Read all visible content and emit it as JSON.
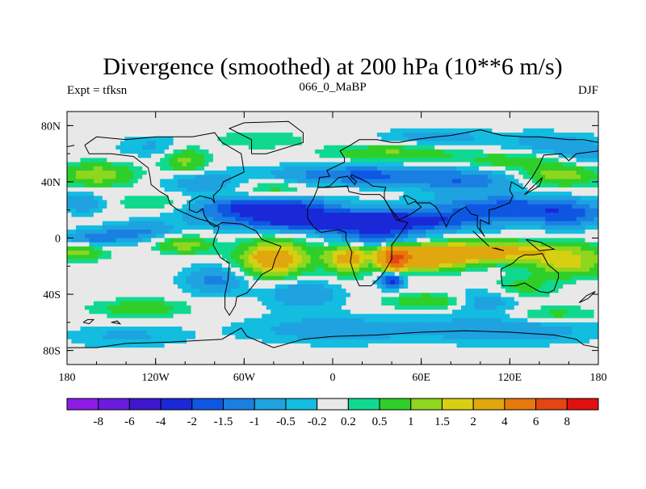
{
  "chart_data": {
    "type": "heatmap",
    "title": "Divergence (smoothed) at 200 hPa (10**6 m/s)",
    "subtitle": "066_0_MaBP",
    "left_label": "Expt = tfksn",
    "right_label": "DJF",
    "x_ticks": [
      {
        "value": -180,
        "label": "180"
      },
      {
        "value": -120,
        "label": "120W"
      },
      {
        "value": -60,
        "label": "60W"
      },
      {
        "value": 0,
        "label": "0"
      },
      {
        "value": 60,
        "label": "60E"
      },
      {
        "value": 120,
        "label": "120E"
      },
      {
        "value": 180,
        "label": "180"
      }
    ],
    "y_ticks": [
      {
        "value": 80,
        "label": "80N"
      },
      {
        "value": 40,
        "label": "40N"
      },
      {
        "value": 0,
        "label": "0"
      },
      {
        "value": -40,
        "label": "40S"
      },
      {
        "value": -80,
        "label": "80S"
      }
    ],
    "xlim": [
      -180,
      180
    ],
    "ylim": [
      -90,
      90
    ],
    "legend_levels": [
      "-8",
      "-6",
      "-4",
      "-2",
      "-1.5",
      "-1",
      "-0.5",
      "-0.2",
      "0.2",
      "0.5",
      "1",
      "1.5",
      "2",
      "4",
      "6",
      "8"
    ],
    "legend_colors": [
      "#8c1ce6",
      "#6a1bdc",
      "#3f17cf",
      "#1a28d8",
      "#0e57e2",
      "#1a7fe3",
      "#1ea2e0",
      "#12bde0",
      "#e8e8e8",
      "#10d98f",
      "#2fcf2a",
      "#8fd61e",
      "#d8cf12",
      "#e0a80e",
      "#e6780c",
      "#e44512",
      "#e01010"
    ],
    "field_blobs": [
      {
        "lon": 15,
        "lat": 12,
        "rx": 80,
        "ry": 7,
        "v": -3.2
      },
      {
        "lon": -45,
        "lat": 22,
        "rx": 45,
        "ry": 7,
        "v": -2.5
      },
      {
        "lon": 120,
        "lat": 22,
        "rx": 55,
        "ry": 8,
        "v": -1.8
      },
      {
        "lon": 20,
        "lat": 45,
        "rx": 60,
        "ry": 7,
        "v": -1.6
      },
      {
        "lon": -160,
        "lat": 0,
        "rx": 25,
        "ry": 6,
        "v": -1.2
      },
      {
        "lon": -130,
        "lat": 5,
        "rx": 22,
        "ry": 6,
        "v": -1.0
      },
      {
        "lon": 160,
        "lat": 15,
        "rx": 25,
        "ry": 8,
        "v": -1.2
      },
      {
        "lon": -170,
        "lat": 25,
        "rx": 15,
        "ry": 7,
        "v": -1.0
      },
      {
        "lon": 90,
        "lat": 40,
        "rx": 35,
        "ry": 8,
        "v": -1.2
      },
      {
        "lon": -90,
        "lat": 40,
        "rx": 25,
        "ry": 8,
        "v": -0.9
      },
      {
        "lon": 170,
        "lat": 60,
        "rx": 25,
        "ry": 10,
        "v": -0.7
      },
      {
        "lon": -120,
        "lat": 65,
        "rx": 25,
        "ry": 8,
        "v": -0.6
      },
      {
        "lon": 140,
        "lat": 68,
        "rx": 30,
        "ry": 8,
        "v": -0.6
      },
      {
        "lon": -50,
        "lat": 70,
        "rx": 30,
        "ry": 6,
        "v": 0.5
      },
      {
        "lon": 70,
        "lat": 72,
        "rx": 35,
        "ry": 6,
        "v": -0.8
      },
      {
        "lon": -160,
        "lat": 45,
        "rx": 25,
        "ry": 8,
        "v": 1.4
      },
      {
        "lon": 155,
        "lat": 45,
        "rx": 25,
        "ry": 8,
        "v": 1.4
      },
      {
        "lon": -100,
        "lat": 55,
        "rx": 15,
        "ry": 10,
        "v": 1.2
      },
      {
        "lon": 40,
        "lat": 60,
        "rx": 40,
        "ry": 6,
        "v": 1.1
      },
      {
        "lon": 120,
        "lat": 55,
        "rx": 35,
        "ry": 6,
        "v": 0.8
      },
      {
        "lon": -40,
        "lat": 35,
        "rx": 20,
        "ry": 6,
        "v": 0.7
      },
      {
        "lon": -120,
        "lat": 25,
        "rx": 25,
        "ry": 6,
        "v": 0.6
      },
      {
        "lon": 100,
        "lat": -10,
        "rx": 70,
        "ry": 7,
        "v": 2.6
      },
      {
        "lon": 65,
        "lat": -15,
        "rx": 25,
        "ry": 8,
        "v": 2.4
      },
      {
        "lon": 42,
        "lat": -15,
        "rx": 9,
        "ry": 8,
        "v": 5.0
      },
      {
        "lon": -40,
        "lat": -15,
        "rx": 22,
        "ry": 12,
        "v": 2.8
      },
      {
        "lon": 10,
        "lat": -15,
        "rx": 15,
        "ry": 10,
        "v": 2.1
      },
      {
        "lon": -175,
        "lat": -10,
        "rx": 20,
        "ry": 6,
        "v": 1.3
      },
      {
        "lon": -100,
        "lat": -5,
        "rx": 18,
        "ry": 6,
        "v": 1.3
      },
      {
        "lon": 160,
        "lat": -20,
        "rx": 25,
        "ry": 8,
        "v": 1.5
      },
      {
        "lon": 70,
        "lat": -45,
        "rx": 30,
        "ry": 6,
        "v": 1.1
      },
      {
        "lon": -130,
        "lat": -50,
        "rx": 30,
        "ry": 6,
        "v": 0.9
      },
      {
        "lon": 150,
        "lat": -55,
        "rx": 30,
        "ry": 6,
        "v": 0.8
      },
      {
        "lon": 130,
        "lat": -35,
        "rx": 20,
        "ry": 8,
        "v": 0.7
      },
      {
        "lon": 40,
        "lat": -30,
        "rx": 8,
        "ry": 6,
        "v": -2.4
      },
      {
        "lon": -20,
        "lat": -40,
        "rx": 25,
        "ry": 10,
        "v": -1.0
      },
      {
        "lon": 100,
        "lat": -45,
        "rx": 25,
        "ry": 8,
        "v": -1.0
      },
      {
        "lon": -80,
        "lat": -30,
        "rx": 20,
        "ry": 10,
        "v": -1.2
      },
      {
        "lon": 0,
        "lat": -65,
        "rx": 60,
        "ry": 10,
        "v": -0.8
      },
      {
        "lon": 120,
        "lat": -65,
        "rx": 60,
        "ry": 10,
        "v": -0.9
      },
      {
        "lon": -140,
        "lat": -70,
        "rx": 40,
        "ry": 8,
        "v": -0.6
      },
      {
        "lon": 30,
        "lat": 0,
        "rx": 30,
        "ry": 8,
        "v": -1.6
      }
    ],
    "coastlines": [
      [
        [
          -168,
          66
        ],
        [
          -160,
          72
        ],
        [
          -140,
          70
        ],
        [
          -120,
          72
        ],
        [
          -95,
          72
        ],
        [
          -80,
          75
        ],
        [
          -75,
          68
        ],
        [
          -62,
          60
        ],
        [
          -60,
          47
        ],
        [
          -66,
          44
        ],
        [
          -74,
          40
        ],
        [
          -76,
          35
        ],
        [
          -81,
          30
        ],
        [
          -80,
          25
        ],
        [
          -82,
          28
        ],
        [
          -90,
          30
        ],
        [
          -97,
          26
        ],
        [
          -97,
          20
        ],
        [
          -92,
          18
        ],
        [
          -88,
          21
        ],
        [
          -87,
          16
        ],
        [
          -83,
          10
        ],
        [
          -80,
          8
        ],
        [
          -78,
          9
        ],
        [
          -75,
          11
        ],
        [
          -62,
          10
        ],
        [
          -52,
          5
        ],
        [
          -48,
          -1
        ],
        [
          -35,
          -6
        ],
        [
          -39,
          -15
        ],
        [
          -41,
          -22
        ],
        [
          -48,
          -26
        ],
        [
          -54,
          -34
        ],
        [
          -58,
          -39
        ],
        [
          -65,
          -42
        ],
        [
          -66,
          -48
        ],
        [
          -70,
          -55
        ],
        [
          -73,
          -50
        ],
        [
          -73,
          -40
        ],
        [
          -71,
          -30
        ],
        [
          -70,
          -18
        ],
        [
          -76,
          -14
        ],
        [
          -81,
          -5
        ],
        [
          -80,
          0
        ],
        [
          -78,
          4
        ],
        [
          -77,
          8
        ],
        [
          -85,
          12
        ],
        [
          -92,
          14
        ],
        [
          -105,
          20
        ],
        [
          -110,
          24
        ],
        [
          -112,
          30
        ],
        [
          -117,
          33
        ],
        [
          -123,
          38
        ],
        [
          -124,
          45
        ],
        [
          -125,
          50
        ],
        [
          -135,
          58
        ],
        [
          -150,
          60
        ],
        [
          -165,
          60
        ],
        [
          -168,
          66
        ]
      ],
      [
        [
          -10,
          36
        ],
        [
          -6,
          36
        ],
        [
          -2,
          36
        ],
        [
          10,
          37
        ],
        [
          11,
          33
        ],
        [
          20,
          31
        ],
        [
          32,
          31
        ],
        [
          35,
          28
        ],
        [
          43,
          13
        ],
        [
          51,
          11
        ],
        [
          45,
          2
        ],
        [
          40,
          -5
        ],
        [
          40,
          -15
        ],
        [
          35,
          -24
        ],
        [
          32,
          -28
        ],
        [
          26,
          -34
        ],
        [
          18,
          -34
        ],
        [
          15,
          -27
        ],
        [
          12,
          -17
        ],
        [
          13,
          -10
        ],
        [
          9,
          -1
        ],
        [
          9,
          4
        ],
        [
          4,
          6
        ],
        [
          -8,
          4
        ],
        [
          -13,
          8
        ],
        [
          -17,
          14
        ],
        [
          -17,
          21
        ],
        [
          -13,
          28
        ],
        [
          -10,
          36
        ]
      ],
      [
        [
          -10,
          36
        ],
        [
          -9,
          43
        ],
        [
          -2,
          44
        ],
        [
          -4,
          48
        ],
        [
          2,
          51
        ],
        [
          8,
          54
        ],
        [
          8,
          57
        ],
        [
          5,
          62
        ],
        [
          12,
          66
        ],
        [
          18,
          70
        ],
        [
          30,
          70
        ],
        [
          40,
          68
        ],
        [
          45,
          68
        ],
        [
          55,
          70
        ],
        [
          70,
          72
        ],
        [
          80,
          73
        ],
        [
          100,
          77
        ],
        [
          115,
          73
        ],
        [
          130,
          72
        ],
        [
          140,
          72
        ],
        [
          160,
          70
        ],
        [
          170,
          70
        ],
        [
          180,
          68
        ]
      ],
      [
        [
          -180,
          65
        ],
        [
          -175,
          66
        ]
      ],
      [
        [
          180,
          62
        ],
        [
          165,
          60
        ],
        [
          160,
          55
        ],
        [
          155,
          60
        ],
        [
          143,
          59
        ],
        [
          140,
          52
        ],
        [
          135,
          43
        ],
        [
          129,
          35
        ],
        [
          126,
          37
        ],
        [
          121,
          40
        ],
        [
          120,
          34
        ],
        [
          122,
          30
        ],
        [
          120,
          25
        ],
        [
          110,
          21
        ],
        [
          106,
          20
        ],
        [
          106,
          10
        ],
        [
          100,
          13
        ],
        [
          100,
          6
        ],
        [
          103,
          1
        ],
        [
          98,
          8
        ],
        [
          98,
          16
        ],
        [
          94,
          17
        ],
        [
          90,
          22
        ],
        [
          86,
          20
        ],
        [
          80,
          15
        ],
        [
          77,
          8
        ],
        [
          73,
          17
        ],
        [
          70,
          22
        ],
        [
          66,
          25
        ],
        [
          57,
          25
        ],
        [
          56,
          27
        ],
        [
          50,
          30
        ],
        [
          48,
          30
        ],
        [
          51,
          24
        ],
        [
          56,
          26
        ],
        [
          60,
          22
        ],
        [
          53,
          17
        ],
        [
          45,
          13
        ],
        [
          43,
          16
        ],
        [
          39,
          21
        ],
        [
          35,
          28
        ],
        [
          35,
          33
        ],
        [
          36,
          36
        ],
        [
          27,
          37
        ],
        [
          23,
          40
        ],
        [
          19,
          42
        ],
        [
          13,
          45
        ],
        [
          12,
          44
        ],
        [
          16,
          40
        ],
        [
          15,
          38
        ],
        [
          10,
          44
        ],
        [
          4,
          43
        ],
        [
          -2,
          37
        ],
        [
          -6,
          36
        ],
        [
          -10,
          36
        ]
      ],
      [
        [
          114,
          -22
        ],
        [
          114,
          -26
        ],
        [
          115,
          -34
        ],
        [
          124,
          -34
        ],
        [
          130,
          -32
        ],
        [
          135,
          -35
        ],
        [
          140,
          -38
        ],
        [
          146,
          -39
        ],
        [
          150,
          -37
        ],
        [
          153,
          -28
        ],
        [
          153,
          -25
        ],
        [
          146,
          -19
        ],
        [
          142,
          -11
        ],
        [
          136,
          -12
        ],
        [
          130,
          -12
        ],
        [
          126,
          -14
        ],
        [
          122,
          -18
        ],
        [
          114,
          -22
        ]
      ],
      [
        [
          -55,
          60
        ],
        [
          -45,
          60
        ],
        [
          -20,
          68
        ],
        [
          -20,
          75
        ],
        [
          -30,
          83
        ],
        [
          -60,
          82
        ],
        [
          -70,
          78
        ],
        [
          -55,
          70
        ],
        [
          -55,
          60
        ]
      ],
      [
        [
          -180,
          -78
        ],
        [
          -160,
          -78
        ],
        [
          -140,
          -75
        ],
        [
          -110,
          -74
        ],
        [
          -75,
          -72
        ],
        [
          -62,
          -64
        ],
        [
          -58,
          -70
        ],
        [
          -40,
          -78
        ],
        [
          -20,
          -72
        ],
        [
          0,
          -70
        ],
        [
          30,
          -69
        ],
        [
          60,
          -67
        ],
        [
          90,
          -66
        ],
        [
          120,
          -67
        ],
        [
          150,
          -69
        ],
        [
          165,
          -72
        ],
        [
          170,
          -76
        ],
        [
          180,
          -78
        ]
      ],
      [
        [
          -169,
          -60
        ],
        [
          -166,
          -58
        ],
        [
          -162,
          -58
        ],
        [
          -165,
          -61
        ],
        [
          -169,
          -60
        ]
      ],
      [
        [
          -150,
          -60
        ],
        [
          -146,
          -59
        ],
        [
          -144,
          -61
        ],
        [
          -150,
          -60
        ]
      ],
      [
        [
          95,
          5
        ],
        [
          103,
          -3
        ],
        [
          106,
          -6
        ],
        [
          100,
          0
        ],
        [
          95,
          5
        ]
      ],
      [
        [
          110,
          -7
        ],
        [
          116,
          -9
        ],
        [
          108,
          -7
        ]
      ],
      [
        [
          131,
          -1
        ],
        [
          141,
          -3
        ],
        [
          150,
          -8
        ],
        [
          140,
          -9
        ],
        [
          131,
          -1
        ]
      ],
      [
        [
          130,
          31
        ],
        [
          135,
          34
        ],
        [
          140,
          37
        ],
        [
          142,
          43
        ],
        [
          139,
          40
        ],
        [
          134,
          35
        ],
        [
          130,
          31
        ]
      ],
      [
        [
          167,
          -46
        ],
        [
          172,
          -41
        ],
        [
          178,
          -38
        ],
        [
          173,
          -43
        ],
        [
          167,
          -46
        ]
      ]
    ]
  }
}
